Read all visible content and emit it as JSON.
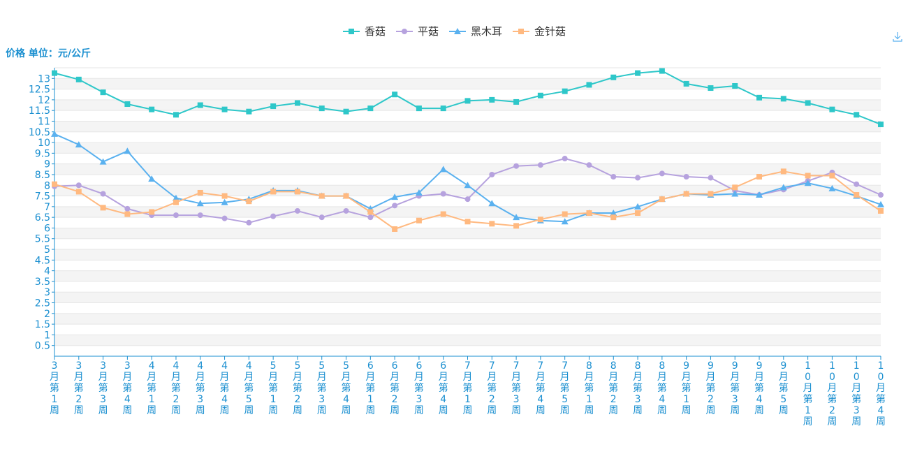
{
  "chart_data": {
    "type": "line",
    "unit_label": "价格 单位：元/公斤",
    "categories": [
      "3月第1周",
      "3月第2周",
      "3月第3周",
      "3月第4周",
      "4月第1周",
      "4月第2周",
      "4月第3周",
      "4月第4周",
      "4月第5周",
      "5月第1周",
      "5月第2周",
      "5月第3周",
      "5月第4周",
      "6月第1周",
      "6月第2周",
      "6月第3周",
      "6月第4周",
      "7月第1周",
      "7月第2周",
      "7月第3周",
      "7月第4周",
      "7月第5周",
      "8月第1周",
      "8月第2周",
      "8月第3周",
      "8月第4周",
      "9月第1周",
      "9月第2周",
      "9月第3周",
      "9月第4周",
      "9月第5周",
      "10月第1周",
      "10月第2周",
      "10月第3周",
      "10月第4周"
    ],
    "ylim": [
      0,
      13.5
    ],
    "yticks": [
      "0.5",
      "1",
      "1.5",
      "2",
      "2.5",
      "3",
      "3.5",
      "4",
      "4.5",
      "5",
      "5.5",
      "6",
      "6.5",
      "7",
      "7.5",
      "8",
      "8.5",
      "9",
      "9.5",
      "10",
      "10.5",
      "11",
      "11.5",
      "12",
      "12.5",
      "13"
    ],
    "grid": true,
    "legend_position": "top-center",
    "series": [
      {
        "name": "香菇",
        "color": "#2ec7c9",
        "marker": "square",
        "values": [
          13.25,
          12.95,
          12.35,
          11.8,
          11.55,
          11.3,
          11.75,
          11.55,
          11.45,
          11.7,
          11.85,
          11.6,
          11.45,
          11.6,
          12.25,
          11.6,
          11.6,
          11.95,
          12.0,
          11.9,
          12.2,
          12.4,
          12.7,
          13.05,
          13.25,
          13.35,
          12.75,
          12.55,
          12.65,
          12.1,
          12.05,
          11.85,
          11.55,
          11.3,
          10.85
        ]
      },
      {
        "name": "平菇",
        "color": "#b6a2de",
        "marker": "circle",
        "values": [
          7.95,
          8.0,
          7.6,
          6.9,
          6.6,
          6.6,
          6.6,
          6.45,
          6.25,
          6.55,
          6.8,
          6.5,
          6.8,
          6.5,
          7.05,
          7.5,
          7.6,
          7.35,
          8.5,
          8.9,
          8.95,
          9.25,
          8.95,
          8.4,
          8.35,
          8.55,
          8.4,
          8.35,
          7.75,
          7.55,
          7.8,
          8.2,
          8.6,
          8.05,
          7.55
        ]
      },
      {
        "name": "黑木耳",
        "color": "#5ab1ef",
        "marker": "triangle",
        "values": [
          10.4,
          9.9,
          9.1,
          9.6,
          8.3,
          7.4,
          7.15,
          7.2,
          7.35,
          7.75,
          7.75,
          7.5,
          7.5,
          6.9,
          7.45,
          7.65,
          8.75,
          8.0,
          7.15,
          6.5,
          6.35,
          6.3,
          6.7,
          6.7,
          7.0,
          7.35,
          7.6,
          7.55,
          7.6,
          7.55,
          7.9,
          8.1,
          7.85,
          7.5,
          7.1
        ]
      },
      {
        "name": "金针菇",
        "color": "#ffb980",
        "marker": "square",
        "values": [
          8.05,
          7.7,
          6.95,
          6.65,
          6.75,
          7.2,
          7.65,
          7.5,
          7.25,
          7.7,
          7.7,
          7.5,
          7.5,
          6.75,
          5.95,
          6.35,
          6.65,
          6.3,
          6.2,
          6.1,
          6.4,
          6.65,
          6.7,
          6.5,
          6.7,
          7.35,
          7.6,
          7.6,
          7.9,
          8.4,
          8.65,
          8.45,
          8.45,
          7.55,
          6.8
        ]
      }
    ]
  }
}
